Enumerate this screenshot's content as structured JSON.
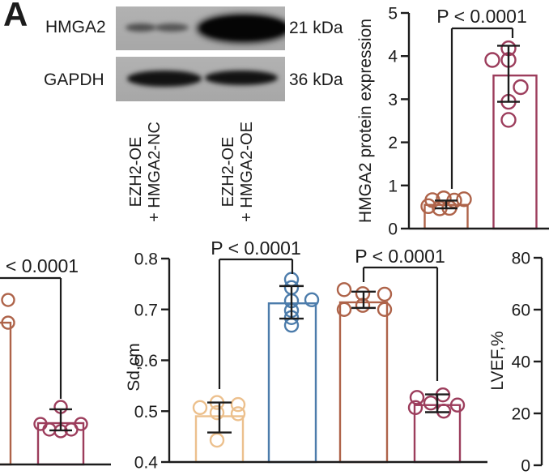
{
  "panel_label": "A",
  "blot": {
    "targets": [
      {
        "name": "HMGA2",
        "weight": "21 kDa"
      },
      {
        "name": "GAPDH",
        "weight": "36 kDa"
      }
    ],
    "lanes": [
      {
        "line1": "EZH2-OE",
        "line2": "+ HMGA2-NC"
      },
      {
        "line1": "EZH2-OE",
        "line2": "+ HMGA2-OE"
      }
    ]
  },
  "colors": {
    "sienna": "#AE6349",
    "maroon": "#9C3D5C",
    "tan": "#ECC08D",
    "blue": "#4C7CAB",
    "axis": "#1c1c1c"
  },
  "chart_data": [
    {
      "id": "hmga2_protein",
      "type": "bar",
      "ylabel": "HMGA2 protein expression",
      "ylim": [
        0,
        5
      ],
      "yticks": [
        0,
        1,
        2,
        3,
        4,
        5
      ],
      "ytick_labels": [
        "0",
        "1",
        "2",
        "3",
        "4",
        "5"
      ],
      "bars": [
        {
          "color": "#AE6349",
          "mean": 0.55,
          "sd": [
            0.47,
            0.65
          ],
          "points": [
            [
              -17,
              0.66
            ],
            [
              -3,
              0.7
            ],
            [
              10,
              0.65
            ],
            [
              22,
              0.68
            ],
            [
              -22,
              0.52
            ],
            [
              -8,
              0.47
            ],
            [
              4,
              0.48
            ]
          ]
        },
        {
          "color": "#9C3D5C",
          "mean": 3.55,
          "sd": [
            2.94,
            4.24
          ],
          "points": [
            [
              -28,
              3.91
            ],
            [
              -8,
              4.18
            ],
            [
              -8,
              3.91
            ],
            [
              7,
              3.28
            ],
            [
              -8,
              2.94
            ],
            [
              -8,
              2.52
            ]
          ]
        }
      ],
      "brackets": [
        {
          "label": "P < 0.0001"
        }
      ]
    },
    {
      "id": "sd_cm",
      "type": "bar",
      "ylabel": "Sd,cm",
      "ylim": [
        0.4,
        0.8
      ],
      "yticks": [
        0.4,
        0.5,
        0.6,
        0.7,
        0.8
      ],
      "ytick_labels": [
        "0.4",
        "0.5",
        "0.6",
        "0.7",
        "0.8"
      ],
      "bars": [
        {
          "color": "#ECC08D",
          "mean": 0.49,
          "sd": [
            0.458,
            0.517
          ],
          "points": [
            [
              -24,
              0.507
            ],
            [
              -3,
              0.517
            ],
            [
              -3,
              0.497
            ],
            [
              23,
              0.513
            ],
            [
              23,
              0.495
            ],
            [
              -3,
              0.443
            ]
          ]
        },
        {
          "color": "#4C7CAB",
          "mean": 0.712,
          "sd": [
            0.682,
            0.746
          ],
          "points": [
            [
              -1,
              0.759
            ],
            [
              -1,
              0.743
            ],
            [
              -1,
              0.717
            ],
            [
              -1,
              0.698
            ],
            [
              -1,
              0.684
            ],
            [
              -1,
              0.669
            ],
            [
              24,
              0.719
            ]
          ]
        },
        {
          "color": "#AE6349",
          "mean": 0.714,
          "sd": [
            0.703,
            0.735
          ],
          "points": [
            [
              -24,
              0.739
            ],
            [
              -1,
              0.731
            ],
            [
              26,
              0.73
            ],
            [
              -1,
              0.708
            ],
            [
              -24,
              0.7
            ],
            [
              26,
              0.7
            ]
          ]
        },
        {
          "color": "#9C3D5C",
          "mean": 0.512,
          "sd": [
            0.498,
            0.533
          ],
          "points": [
            [
              -25,
              0.527
            ],
            [
              -27,
              0.507
            ],
            [
              -8,
              0.516
            ],
            [
              7,
              0.532
            ],
            [
              8,
              0.5
            ],
            [
              25,
              0.512
            ]
          ]
        }
      ],
      "brackets": [
        {
          "label": "P < 0.0001"
        },
        {
          "label": "P < 0.0001"
        }
      ]
    },
    {
      "id": "partial_left",
      "type": "bar",
      "ylabel": "",
      "note": "chart clipped at left image edge; y-axis not visible, values normalized 0-1 of visible axis height",
      "ylim": [
        0,
        1
      ],
      "yticks": [],
      "ytick_labels": [],
      "bars": [
        {
          "color": "#AE6349",
          "mean": 0.686,
          "sd": null,
          "points": [
            [
              34,
              0.796
            ],
            [
              34,
              0.686
            ]
          ]
        },
        {
          "color": "#9C3D5C",
          "mean": 0.2,
          "sd": [
            0.165,
            0.267
          ],
          "points": [
            [
              -25,
              0.196
            ],
            [
              -14,
              0.169
            ],
            [
              0,
              0.278
            ],
            [
              0,
              0.161
            ],
            [
              13,
              0.169
            ],
            [
              25,
              0.196
            ]
          ]
        }
      ],
      "brackets": [
        {
          "label": "< 0.0001"
        }
      ]
    },
    {
      "id": "lvef",
      "type": "bar",
      "ylabel": "LVEF,%",
      "note": "only y-axis visible; plot area clipped at right image edge",
      "ylim": [
        0,
        80
      ],
      "yticks": [
        0,
        20,
        40,
        60,
        80
      ],
      "ytick_labels": [
        "0",
        "20",
        "40",
        "60",
        "80"
      ],
      "bars": [],
      "brackets": []
    }
  ]
}
